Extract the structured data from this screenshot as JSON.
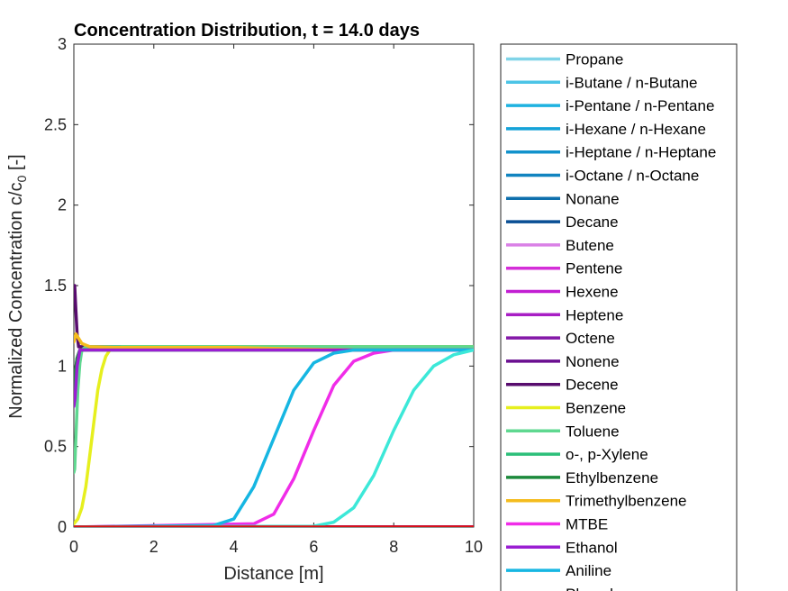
{
  "chart_data": {
    "type": "line",
    "title": "Concentration Distribution, t =  14.0 days",
    "xlabel": "Distance [m]",
    "ylabel": "Normalized Concentration c/c",
    "ylabel_sub": "0",
    "ylabel_suffix": " [-]",
    "xlim": [
      0,
      10
    ],
    "ylim": [
      0,
      3
    ],
    "xticks": [
      "0",
      "2",
      "4",
      "6",
      "8",
      "10"
    ],
    "yticks": [
      "0",
      "0.5",
      "1",
      "1.5",
      "2",
      "2.5",
      "3"
    ],
    "grid": false,
    "legend_position": "outside-right",
    "series": [
      {
        "name": "Propane",
        "color": "#80d4e8",
        "x": [
          0,
          10
        ],
        "y": [
          0,
          0
        ]
      },
      {
        "name": "i-Butane / n-Butane",
        "color": "#4cc4e6",
        "x": [
          0,
          10
        ],
        "y": [
          0,
          0
        ]
      },
      {
        "name": "i-Pentane / n-Pentane",
        "color": "#1fb2e0",
        "x": [
          0,
          10
        ],
        "y": [
          0,
          0
        ]
      },
      {
        "name": "i-Hexane / n-Hexane",
        "color": "#14a2d8",
        "x": [
          0,
          10
        ],
        "y": [
          0,
          0
        ]
      },
      {
        "name": "i-Heptane / n-Heptane",
        "color": "#1292cc",
        "x": [
          0,
          10
        ],
        "y": [
          0,
          0
        ]
      },
      {
        "name": "i-Octane / n-Octane",
        "color": "#1184c0",
        "x": [
          0,
          10
        ],
        "y": [
          0,
          0
        ]
      },
      {
        "name": "Nonane",
        "color": "#0e6fac",
        "x": [
          0,
          10
        ],
        "y": [
          0,
          0
        ]
      },
      {
        "name": "Decane",
        "color": "#0a4f94",
        "x": [
          0,
          10
        ],
        "y": [
          0,
          0
        ]
      },
      {
        "name": "Butene",
        "color": "#da80e6",
        "x": [
          0,
          10
        ],
        "y": [
          0,
          0
        ]
      },
      {
        "name": "Pentene",
        "color": "#d42ed8",
        "x": [
          0,
          10
        ],
        "y": [
          0,
          0
        ]
      },
      {
        "name": "Hexene",
        "color": "#c21ed2",
        "x": [
          0,
          10
        ],
        "y": [
          0,
          0
        ]
      },
      {
        "name": "Heptene",
        "color": "#a81ec4",
        "x": [
          0,
          10
        ],
        "y": [
          0,
          0
        ]
      },
      {
        "name": "Octene",
        "color": "#8418a8",
        "x": [
          0,
          10
        ],
        "y": [
          0,
          0
        ]
      },
      {
        "name": "Nonene",
        "color": "#6a0f90",
        "x": [
          0,
          10
        ],
        "y": [
          0,
          0
        ]
      },
      {
        "name": "Decene",
        "color": "#580c6e",
        "x": [
          0,
          0.02,
          0.05,
          0.08,
          0.12,
          10
        ],
        "y": [
          1.5,
          1.5,
          1.35,
          1.2,
          1.12,
          1.12
        ]
      },
      {
        "name": "Benzene",
        "color": "#e6ef1e",
        "x": [
          0,
          0.1,
          0.2,
          0.3,
          0.4,
          0.5,
          0.6,
          0.7,
          0.8,
          0.9,
          1.0,
          1.2,
          10
        ],
        "y": [
          0.02,
          0.05,
          0.12,
          0.25,
          0.45,
          0.65,
          0.85,
          0.98,
          1.06,
          1.1,
          1.11,
          1.12,
          1.12
        ]
      },
      {
        "name": "Toluene",
        "color": "#5fd890",
        "x": [
          0,
          0.02,
          0.05,
          0.1,
          0.15,
          0.2,
          0.3,
          10
        ],
        "y": [
          0.34,
          0.36,
          0.55,
          0.85,
          1.02,
          1.1,
          1.12,
          1.12
        ]
      },
      {
        "name": "o-, p-Xylene",
        "color": "#2cbf7a",
        "x": [
          0,
          0.03,
          0.08,
          0.15,
          10
        ],
        "y": [
          0.9,
          0.95,
          1.05,
          1.1,
          1.1
        ]
      },
      {
        "name": "Ethylbenzene",
        "color": "#1c8a3c",
        "x": [
          0,
          0.03,
          0.08,
          0.15,
          10
        ],
        "y": [
          0.85,
          0.95,
          1.05,
          1.1,
          1.1
        ]
      },
      {
        "name": "Trimethylbenzene",
        "color": "#f4bc1e",
        "x": [
          0,
          0.05,
          0.1,
          0.2,
          0.4,
          1.0,
          2.0,
          3.0,
          4.0,
          5.0,
          6.0,
          7.0,
          8.0,
          9.0,
          10
        ],
        "y": [
          1.15,
          1.2,
          1.18,
          1.14,
          1.12,
          1.115,
          1.115,
          1.115,
          1.115,
          1.11,
          1.105,
          1.1,
          1.1,
          1.1,
          1.1
        ]
      },
      {
        "name": "MTBE",
        "color": "#f02ce8",
        "x": [
          0,
          4.5,
          5.0,
          5.5,
          6.0,
          6.5,
          7.0,
          7.5,
          8.0,
          10
        ],
        "y": [
          0,
          0.02,
          0.08,
          0.3,
          0.6,
          0.88,
          1.03,
          1.08,
          1.1,
          1.1
        ]
      },
      {
        "name": "Ethanol",
        "color": "#9a1ed2",
        "x": [
          0,
          0.03,
          0.08,
          0.15,
          10
        ],
        "y": [
          0.75,
          0.8,
          1.0,
          1.1,
          1.1
        ]
      },
      {
        "name": "Aniline",
        "color": "#16b6e2",
        "x": [
          0,
          3.5,
          4.0,
          4.5,
          5.0,
          5.5,
          6.0,
          6.5,
          7.0,
          10
        ],
        "y": [
          0,
          0.01,
          0.05,
          0.25,
          0.55,
          0.85,
          1.02,
          1.08,
          1.1,
          1.1
        ]
      },
      {
        "name": "Phenol",
        "color": "#3ce8d8",
        "x": [
          0,
          6.0,
          6.5,
          7.0,
          7.5,
          8.0,
          8.5,
          9.0,
          9.5,
          10
        ],
        "y": [
          0,
          0.005,
          0.03,
          0.12,
          0.32,
          0.6,
          0.85,
          1.0,
          1.07,
          1.1
        ]
      },
      {
        "name": "",
        "color": "#dd1111",
        "x": [
          0,
          10
        ],
        "y": [
          0,
          0
        ]
      }
    ]
  }
}
